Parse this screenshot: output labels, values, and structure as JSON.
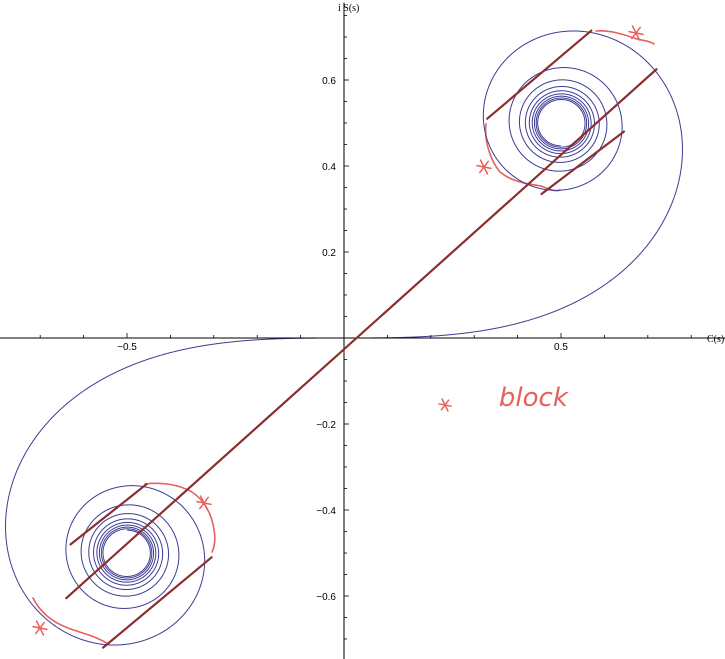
{
  "chart_data": {
    "type": "line",
    "title": "",
    "xlabel": "C(s)",
    "ylabel": "i S(s)",
    "xlim": [
      -0.81,
      0.88
    ],
    "ylim": [
      -0.75,
      0.78
    ],
    "grid": false,
    "x_ticks": [
      {
        "value": -0.5,
        "label": "−0.5"
      },
      {
        "value": 0.5,
        "label": "0.5"
      }
    ],
    "y_ticks": [
      {
        "value": 0.6,
        "label": "0.6"
      },
      {
        "value": 0.4,
        "label": "0.4"
      },
      {
        "value": 0.2,
        "label": "0.2"
      },
      {
        "value": -0.2,
        "label": "−0.2"
      },
      {
        "value": -0.4,
        "label": "−0.4"
      },
      {
        "value": -0.6,
        "label": "−0.6"
      }
    ],
    "series": [
      {
        "kind": "curve",
        "color": "#3b3b94",
        "s_range": [
          -6,
          6
        ]
      }
    ],
    "segments": [
      {
        "x1": -0.64,
        "y1": -0.605,
        "x2": 0.72,
        "y2": 0.625
      },
      {
        "x1": 0.33,
        "y1": 0.51,
        "x2": 0.57,
        "y2": 0.715
      },
      {
        "x1": 0.455,
        "y1": 0.335,
        "x2": 0.645,
        "y2": 0.48
      },
      {
        "x1": -0.63,
        "y1": -0.48,
        "x2": -0.455,
        "y2": -0.34
      },
      {
        "x1": -0.555,
        "y1": -0.72,
        "x2": -0.305,
        "y2": -0.51
      }
    ],
    "annotation": {
      "text": "block",
      "x": 0.35,
      "y": -0.14
    }
  }
}
